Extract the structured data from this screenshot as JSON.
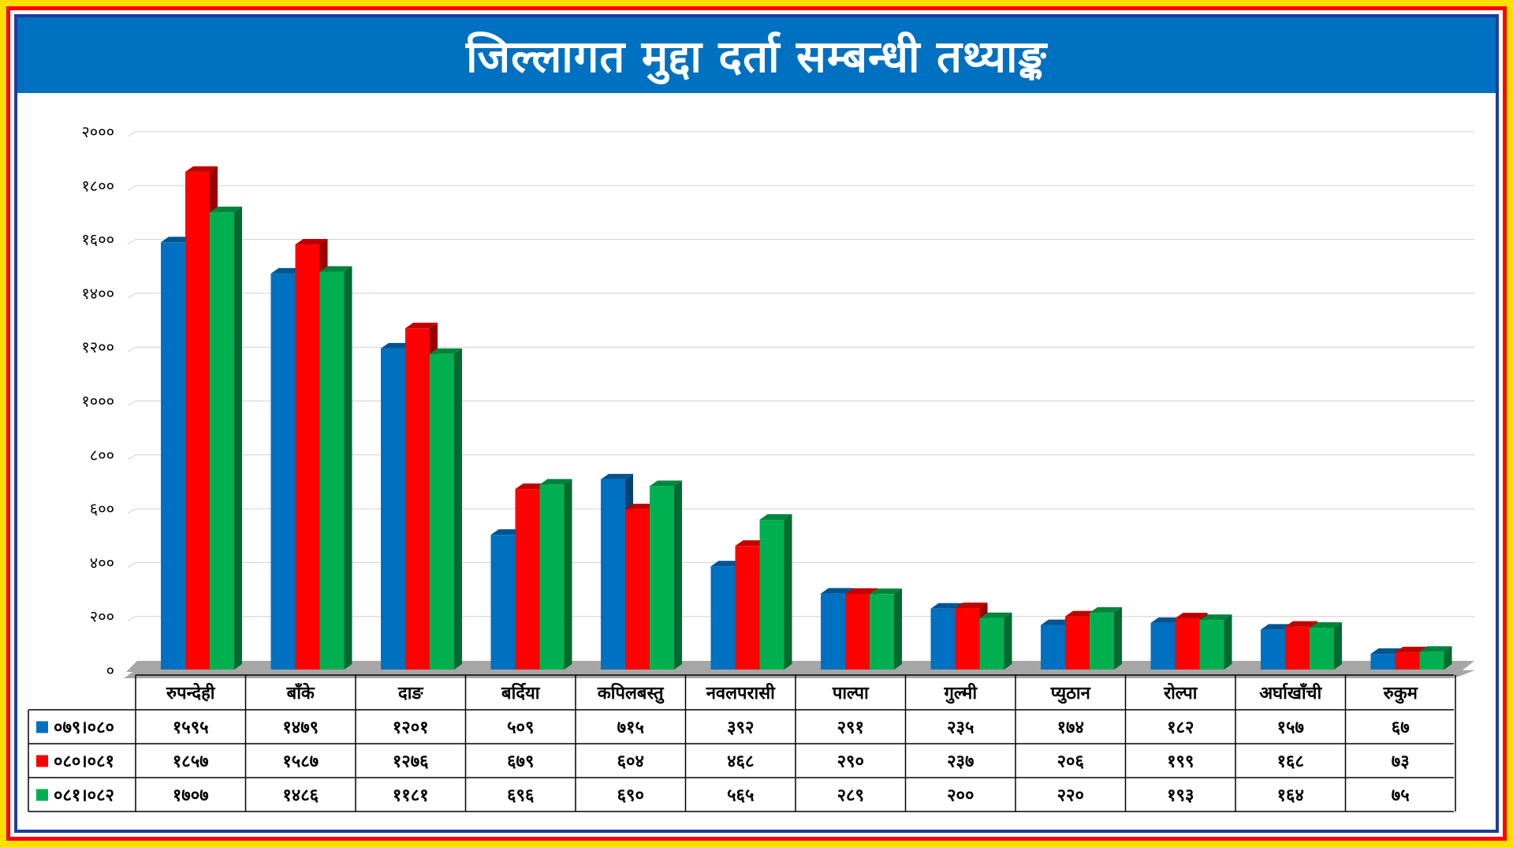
{
  "title": "जिल्लागत मुद्दा दर्ता सम्बन्धी तथ्याङ्क",
  "colors": {
    "frame_outer": "#ffdf00",
    "frame_red": "#ff0000",
    "frame_blue": "#1f3c9a",
    "title_bg": "#0070c0"
  },
  "chart_data": {
    "type": "bar",
    "title": "जिल्लागत मुद्दा दर्ता सम्बन्धी तथ्याङ्क",
    "xlabel": "",
    "ylabel": "",
    "ylim": [
      0,
      2000
    ],
    "yticks": [
      0,
      200,
      400,
      600,
      800,
      1000,
      1200,
      1400,
      1600,
      1800,
      2000
    ],
    "ytick_labels": [
      "०",
      "२००",
      "४००",
      "६००",
      "८००",
      "१०००",
      "१२००",
      "१४००",
      "१६००",
      "१८००",
      "२०००"
    ],
    "grid": true,
    "legend": "table-left",
    "categories": [
      "रुपन्देही",
      "बाँके",
      "दाङ",
      "बर्दिया",
      "कपिलबस्तु",
      "नवलपरासी",
      "पाल्पा",
      "गुल्मी",
      "प्युठान",
      "रोल्पा",
      "अर्घाखाँची",
      "रुकुम"
    ],
    "series": [
      {
        "name": "०७९।०८०",
        "color": "#0070c0",
        "values": [
          1595,
          1479,
          1201,
          509,
          715,
          392,
          291,
          235,
          174,
          182,
          157,
          67
        ],
        "labels": [
          "१५९५",
          "१४७९",
          "१२०१",
          "५०९",
          "७१५",
          "३९२",
          "२९१",
          "२३५",
          "१७४",
          "१८२",
          "१५७",
          "६७"
        ]
      },
      {
        "name": "०८०।०८१",
        "color": "#ff0000",
        "values": [
          1857,
          1587,
          1276,
          679,
          604,
          468,
          290,
          237,
          206,
          199,
          168,
          73
        ],
        "labels": [
          "१८५७",
          "१५८७",
          "१२७६",
          "६७९",
          "६०४",
          "४६८",
          "२९०",
          "२३७",
          "२०६",
          "१९९",
          "१६८",
          "७३"
        ]
      },
      {
        "name": "०८१।०८२",
        "color": "#00b050",
        "values": [
          1707,
          1486,
          1181,
          696,
          690,
          565,
          289,
          200,
          220,
          193,
          164,
          75
        ],
        "labels": [
          "१७०७",
          "१४८६",
          "११८१",
          "६९६",
          "६९०",
          "५६५",
          "२८९",
          "२००",
          "२२०",
          "१९३",
          "१६४",
          "७५"
        ]
      }
    ]
  }
}
